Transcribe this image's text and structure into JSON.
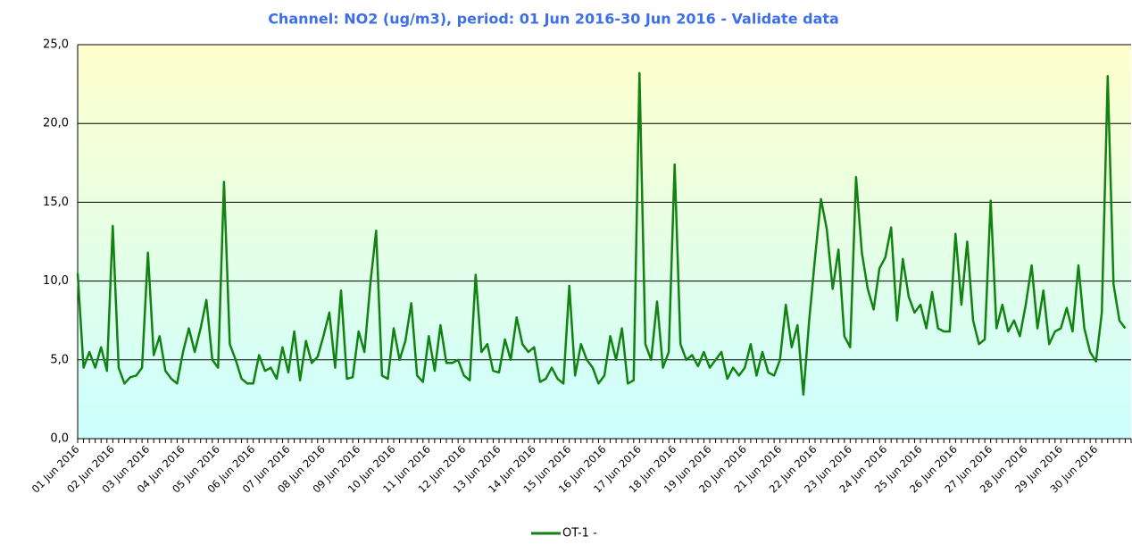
{
  "chart_data": {
    "type": "line",
    "title": "Channel: NO2 (ug/m3), period: 01 Jun 2016-30 Jun 2016 - Validate data",
    "categories": [
      "01 Jun 2016",
      null,
      null,
      null,
      null,
      null,
      "02 Jun 2016",
      null,
      null,
      null,
      null,
      null,
      "03 Jun 2016",
      null,
      null,
      null,
      null,
      null,
      "04 Jun 2016",
      null,
      null,
      null,
      null,
      null,
      "05 Jun 2016",
      null,
      null,
      null,
      null,
      null,
      "06 Jun 2016",
      null,
      null,
      null,
      null,
      null,
      "07 Jun 2016",
      null,
      null,
      null,
      null,
      null,
      "08 Jun 2016",
      null,
      null,
      null,
      null,
      null,
      "09 Jun 2016",
      null,
      null,
      null,
      null,
      null,
      "10 Jun 2016",
      null,
      null,
      null,
      null,
      null,
      "11 Jun 2016",
      null,
      null,
      null,
      null,
      null,
      "12 Jun 2016",
      null,
      null,
      null,
      null,
      null,
      "13 Jun 2016",
      null,
      null,
      null,
      null,
      null,
      "14 Jun 2016",
      null,
      null,
      null,
      null,
      null,
      "15 Jun 2016",
      null,
      null,
      null,
      null,
      null,
      "16 Jun 2016",
      null,
      null,
      null,
      null,
      null,
      "17 Jun 2016",
      null,
      null,
      null,
      null,
      null,
      "18 Jun 2016",
      null,
      null,
      null,
      null,
      null,
      "19 Jun 2016",
      null,
      null,
      null,
      null,
      null,
      "20 Jun 2016",
      null,
      null,
      null,
      null,
      null,
      "21 Jun 2016",
      null,
      null,
      null,
      null,
      null,
      "22 Jun 2016",
      null,
      null,
      null,
      null,
      null,
      "23 Jun 2016",
      null,
      null,
      null,
      null,
      null,
      "24 Jun 2016",
      null,
      null,
      null,
      null,
      null,
      "25 Jun 2016",
      null,
      null,
      null,
      null,
      null,
      "26 Jun 2016",
      null,
      null,
      null,
      null,
      null,
      "27 Jun 2016",
      null,
      null,
      null,
      null,
      null,
      "28 Jun 2016",
      null,
      null,
      null,
      null,
      null,
      "29 Jun 2016",
      null,
      null,
      null,
      null,
      null,
      "30 Jun 2016",
      null,
      null,
      null,
      null,
      null
    ],
    "series": [
      {
        "name": "OT-1 -",
        "color": "#128212",
        "values": [
          10.5,
          4.5,
          5.5,
          4.5,
          5.8,
          4.3,
          13.5,
          4.5,
          3.5,
          3.9,
          4.0,
          4.5,
          11.8,
          5.3,
          6.5,
          4.3,
          3.8,
          3.5,
          5.5,
          7.0,
          5.5,
          7.0,
          8.8,
          5.0,
          4.5,
          16.3,
          6.0,
          5.0,
          3.8,
          3.5,
          3.5,
          5.3,
          4.3,
          4.5,
          3.8,
          5.8,
          4.2,
          6.8,
          3.7,
          6.2,
          4.8,
          5.2,
          6.5,
          8.0,
          4.5,
          9.4,
          3.8,
          3.9,
          6.8,
          5.5,
          9.8,
          13.2,
          4.0,
          3.8,
          7.0,
          5.0,
          6.2,
          8.6,
          4.0,
          3.6,
          6.5,
          4.3,
          7.2,
          4.8,
          4.8,
          5.0,
          4.0,
          3.7,
          10.4,
          5.5,
          6.0,
          4.3,
          4.2,
          6.3,
          5.0,
          7.7,
          6.0,
          5.5,
          5.8,
          3.6,
          3.8,
          4.5,
          3.8,
          3.5,
          9.7,
          4.0,
          6.0,
          5.0,
          4.5,
          3.5,
          4.0,
          6.5,
          5.0,
          7.0,
          3.5,
          3.7,
          23.2,
          6.0,
          5.0,
          8.7,
          4.5,
          5.5,
          17.4,
          6.0,
          5.0,
          5.3,
          4.6,
          5.5,
          4.5,
          5.0,
          5.5,
          3.8,
          4.5,
          4.0,
          4.5,
          6.0,
          4.0,
          5.5,
          4.2,
          4.0,
          5.0,
          8.5,
          5.8,
          7.2,
          2.8,
          7.5,
          11.5,
          15.2,
          13.3,
          9.5,
          12.0,
          6.5,
          5.8,
          16.6,
          11.8,
          9.5,
          8.2,
          10.8,
          11.5,
          13.4,
          7.5,
          11.4,
          9.0,
          8.0,
          8.5,
          7.0,
          9.3,
          7.0,
          6.8,
          6.8,
          13.0,
          8.5,
          12.5,
          7.5,
          6.0,
          6.3,
          15.1,
          7.0,
          8.5,
          6.8,
          7.5,
          6.5,
          8.5,
          11.0,
          7.0,
          9.4,
          6.0,
          6.8,
          7.0,
          8.3,
          6.8,
          11.0,
          7.0,
          5.5,
          4.9,
          8.0,
          23.0,
          9.8,
          7.5,
          7.0
        ]
      }
    ],
    "ylim": [
      0,
      25
    ],
    "yticks": [
      {
        "value": 0,
        "label": "0,0"
      },
      {
        "value": 5,
        "label": "5,0"
      },
      {
        "value": 10,
        "label": "10,0"
      },
      {
        "value": 15,
        "label": "15,0"
      },
      {
        "value": 20,
        "label": "20,0"
      },
      {
        "value": 25,
        "label": "25,0"
      }
    ],
    "grid": true,
    "legend": "bottom"
  }
}
